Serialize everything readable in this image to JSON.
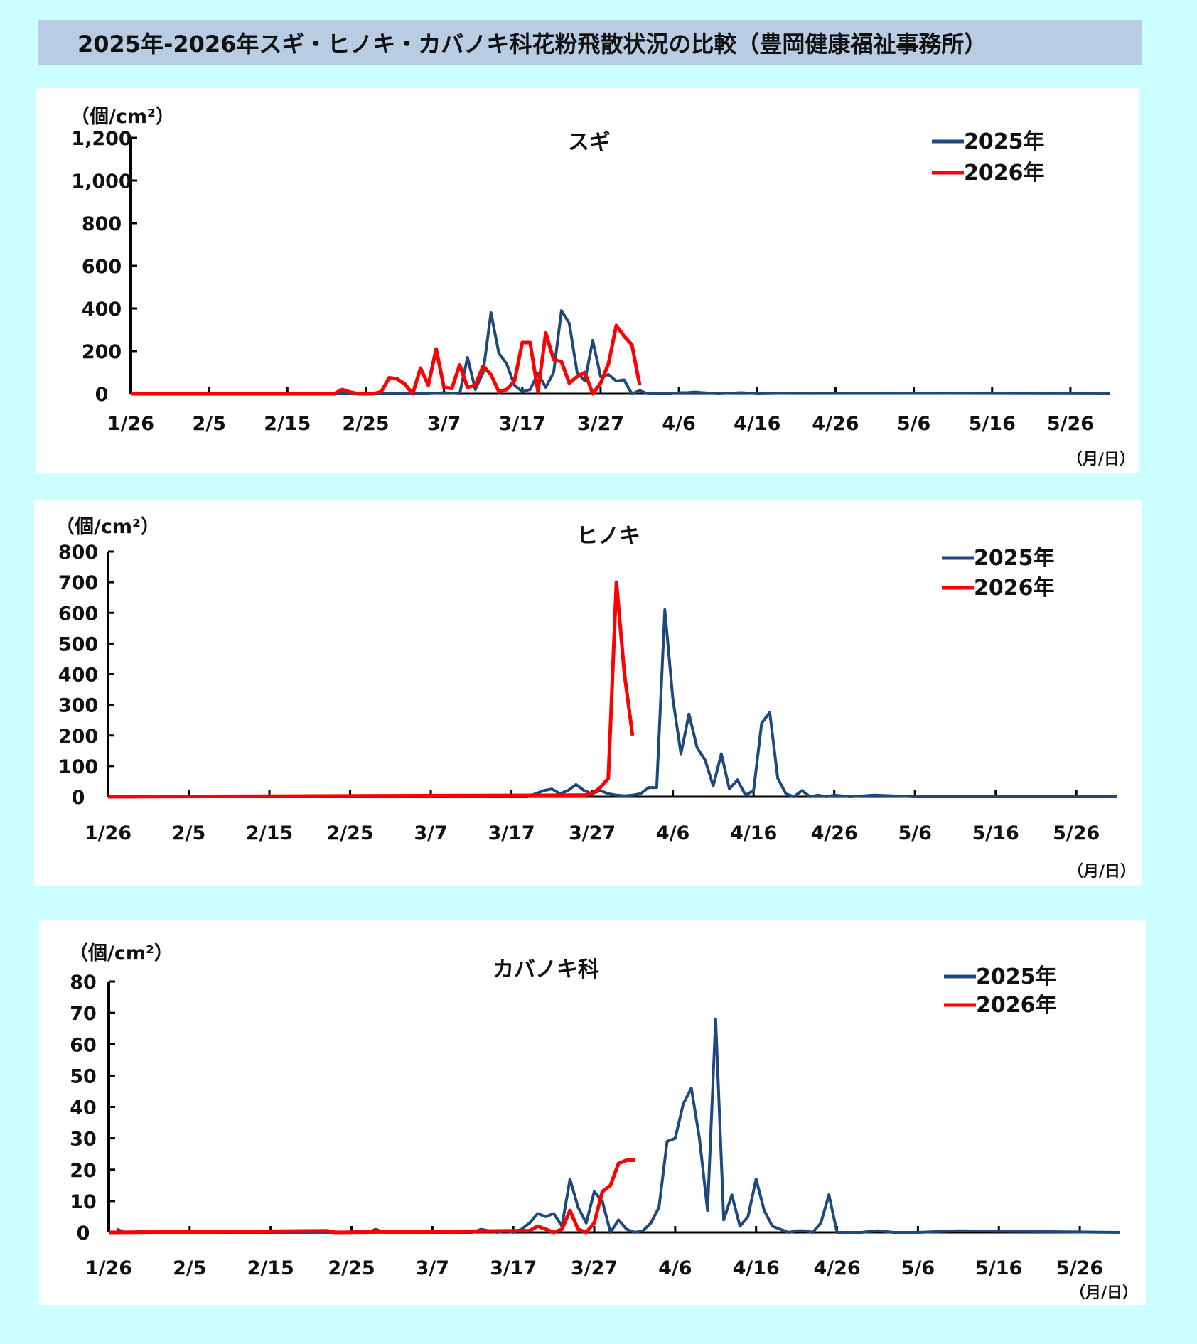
{
  "page_title": "2025年-2026年スギ・ヒノキ・カバノキ科花粉飛散状況の比較（豊岡健康福祉事務所）",
  "colors": {
    "series_2025": "#1f497d",
    "series_2026": "#ff0000",
    "background": "#ccffff",
    "title_bar": "#b8cce4"
  },
  "chart_data": [
    {
      "type": "line",
      "title": "スギ",
      "ylabel": "（個/cm²）",
      "xlabel": "（月/日）",
      "ylim": [
        0,
        1200
      ],
      "yticks": [
        "0",
        "200",
        "400",
        "600",
        "800",
        "1,000",
        "1,200"
      ],
      "yvals": [
        0,
        200,
        400,
        600,
        800,
        1000,
        1200
      ],
      "xlim": [
        0,
        125
      ],
      "xtick_labels": [
        "1/26",
        "2/5",
        "2/15",
        "2/25",
        "3/7",
        "3/17",
        "3/27",
        "4/6",
        "4/16",
        "4/26",
        "5/6",
        "5/16",
        "5/26"
      ],
      "xtick_days": [
        0,
        10,
        20,
        30,
        40,
        50,
        60,
        70,
        80,
        90,
        100,
        110,
        120
      ],
      "legend": [
        "2025年",
        "2026年"
      ],
      "series": [
        {
          "name": "2025年",
          "days": [
            0,
            38,
            40,
            42,
            43,
            44,
            45,
            46,
            47,
            48,
            49,
            50,
            51,
            52,
            53,
            54,
            55,
            56,
            57,
            58,
            59,
            60,
            61,
            62,
            63,
            64,
            65,
            66,
            67,
            68,
            69,
            70,
            71,
            72,
            73,
            75,
            78,
            80,
            85,
            125
          ],
          "values": [
            0,
            0,
            5,
            0,
            170,
            20,
            100,
            380,
            190,
            140,
            40,
            10,
            20,
            95,
            30,
            100,
            390,
            330,
            100,
            60,
            250,
            80,
            90,
            60,
            65,
            0,
            15,
            0,
            0,
            0,
            0,
            5,
            5,
            8,
            5,
            0,
            5,
            0,
            3,
            0
          ]
        },
        {
          "name": "2026年",
          "days": [
            0,
            26,
            27,
            28,
            29,
            30,
            31,
            32,
            33,
            34,
            35,
            36,
            37,
            38,
            39,
            40,
            41,
            42,
            43,
            44,
            45,
            46,
            47,
            48,
            49,
            50,
            51,
            52,
            53,
            54,
            55,
            56,
            57,
            58,
            59,
            60,
            61,
            62,
            63,
            64,
            65
          ],
          "values": [
            0,
            0,
            20,
            8,
            0,
            0,
            0,
            10,
            75,
            70,
            45,
            0,
            120,
            40,
            210,
            30,
            25,
            135,
            30,
            40,
            130,
            90,
            10,
            20,
            60,
            240,
            240,
            10,
            285,
            160,
            150,
            50,
            80,
            100,
            0,
            50,
            140,
            320,
            270,
            230,
            40
          ]
        }
      ]
    },
    {
      "type": "line",
      "title": "ヒノキ",
      "ylabel": "（個/cm²）",
      "xlabel": "（月/日）",
      "ylim": [
        0,
        800
      ],
      "yticks": [
        "0",
        "100",
        "200",
        "300",
        "400",
        "500",
        "600",
        "700",
        "800"
      ],
      "yvals": [
        0,
        100,
        200,
        300,
        400,
        500,
        600,
        700,
        800
      ],
      "xlim": [
        0,
        125
      ],
      "xtick_labels": [
        "1/26",
        "2/5",
        "2/15",
        "2/25",
        "3/7",
        "3/17",
        "3/27",
        "4/6",
        "4/16",
        "4/26",
        "5/6",
        "5/16",
        "5/26"
      ],
      "xtick_days": [
        0,
        10,
        20,
        30,
        40,
        50,
        60,
        70,
        80,
        90,
        100,
        110,
        120
      ],
      "legend": [
        "2025年",
        "2026年"
      ],
      "series": [
        {
          "name": "2025年",
          "days": [
            0,
            52,
            54,
            55,
            56,
            57,
            58,
            59,
            60,
            61,
            62,
            63,
            64,
            65,
            66,
            67,
            68,
            69,
            70,
            71,
            72,
            73,
            74,
            75,
            76,
            77,
            78,
            79,
            80,
            81,
            82,
            83,
            84,
            85,
            86,
            87,
            88,
            89,
            90,
            92,
            95,
            100,
            125
          ],
          "values": [
            0,
            0,
            20,
            25,
            10,
            20,
            40,
            20,
            10,
            20,
            10,
            5,
            3,
            5,
            10,
            30,
            30,
            610,
            320,
            140,
            270,
            160,
            120,
            35,
            140,
            25,
            55,
            5,
            20,
            240,
            275,
            60,
            10,
            0,
            20,
            0,
            5,
            0,
            5,
            0,
            5,
            0,
            0
          ]
        },
        {
          "name": "2026年",
          "days": [
            0,
            58,
            59,
            60,
            61,
            62,
            63,
            64,
            65
          ],
          "values": [
            0,
            5,
            5,
            10,
            30,
            60,
            700,
            400,
            200
          ]
        }
      ]
    },
    {
      "type": "line",
      "title": "カバノキ科",
      "ylabel": "（個/cm²）",
      "xlabel": "（月/日）",
      "ylim": [
        0,
        80
      ],
      "yticks": [
        "0",
        "10",
        "20",
        "30",
        "40",
        "50",
        "60",
        "70",
        "80"
      ],
      "yvals": [
        0,
        10,
        20,
        30,
        40,
        50,
        60,
        70,
        80
      ],
      "xlim": [
        0,
        125
      ],
      "xtick_labels": [
        "1/26",
        "2/5",
        "2/15",
        "2/25",
        "3/7",
        "3/17",
        "3/27",
        "4/6",
        "4/16",
        "4/26",
        "5/6",
        "5/16",
        "5/26"
      ],
      "xtick_days": [
        0,
        10,
        20,
        30,
        40,
        50,
        60,
        70,
        80,
        90,
        100,
        110,
        120
      ],
      "legend": [
        "2025年",
        "2026年"
      ],
      "series": [
        {
          "name": "2025年",
          "days": [
            1,
            2,
            3,
            4,
            5,
            30,
            31,
            32,
            33,
            34,
            35,
            45,
            46,
            47,
            48,
            49,
            50,
            51,
            52,
            53,
            54,
            55,
            56,
            57,
            58,
            59,
            60,
            61,
            62,
            63,
            64,
            65,
            66,
            67,
            68,
            69,
            70,
            71,
            72,
            73,
            74,
            75,
            76,
            77,
            78,
            79,
            80,
            81,
            82,
            83,
            84,
            85,
            86,
            87,
            88,
            89,
            90,
            91,
            92,
            93,
            95,
            97,
            98,
            100,
            105,
            125
          ],
          "values": [
            1,
            0,
            0,
            0.5,
            0,
            0,
            0.5,
            0,
            1,
            0,
            0,
            0,
            1,
            0.5,
            0,
            0.5,
            0,
            1,
            3,
            6,
            5,
            6,
            2,
            17,
            8,
            3,
            13,
            10,
            0,
            4,
            1,
            0,
            0.5,
            3,
            8,
            29,
            30,
            41,
            46,
            30,
            7,
            68,
            4,
            12,
            2,
            5,
            17,
            7,
            2,
            1,
            0,
            0.5,
            0.5,
            0,
            3,
            12,
            0,
            0,
            0,
            0,
            0.5,
            0,
            0,
            0,
            0.5,
            0
          ]
        },
        {
          "name": "2026年",
          "days": [
            0,
            27,
            28,
            50,
            52,
            53,
            54,
            55,
            56,
            57,
            58,
            59,
            60,
            61,
            62,
            63,
            64,
            65
          ],
          "values": [
            0,
            0.5,
            0,
            0.5,
            0.5,
            2,
            1,
            0,
            1,
            7,
            1,
            0,
            3,
            13,
            15,
            22,
            23,
            23
          ]
        }
      ]
    }
  ]
}
